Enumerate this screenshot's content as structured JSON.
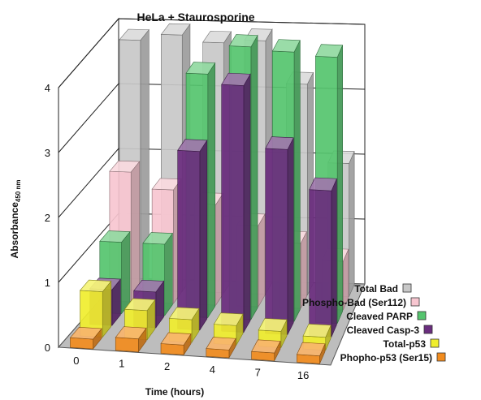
{
  "chart_data": {
    "type": "bar",
    "style": "3d-grouped-rows",
    "title": "HeLa + Staurosporine",
    "xlabel": "Time (hours)",
    "ylabel": "Absorbance",
    "ylabel_subscript": "450 nm",
    "categories": [
      "0",
      "1",
      "2",
      "4",
      "7",
      "16"
    ],
    "ylim": [
      0,
      4
    ],
    "yticks": [
      "0",
      "1",
      "2",
      "3",
      "4"
    ],
    "grid": true,
    "legend_position": "right",
    "series": [
      {
        "name": "Total Bad",
        "color": "#c8c8c8",
        "values": [
          3.85,
          3.95,
          3.85,
          3.9,
          3.25,
          2.05
        ]
      },
      {
        "name": "Phospho-Bad (Ser112)",
        "color": "#f7c6d0",
        "values": [
          2.0,
          1.75,
          1.55,
          1.25,
          1.0,
          0.75
        ]
      },
      {
        "name": "Cleaved PARP",
        "color": "#55c46e",
        "values": [
          1.1,
          1.1,
          3.75,
          4.2,
          4.15,
          4.1
        ]
      },
      {
        "name": "Cleaved Casp-3",
        "color": "#6a2d7e",
        "values": [
          0.55,
          0.55,
          2.75,
          3.8,
          2.85,
          2.25
        ]
      },
      {
        "name": "Total-p53",
        "color": "#f0ee2e",
        "values": [
          0.7,
          0.45,
          0.35,
          0.3,
          0.25,
          0.2
        ]
      },
      {
        "name": "Phopho-p53 (Ser15)",
        "color": "#f28c1e",
        "values": [
          0.15,
          0.2,
          0.15,
          0.12,
          0.12,
          0.12
        ]
      }
    ]
  }
}
